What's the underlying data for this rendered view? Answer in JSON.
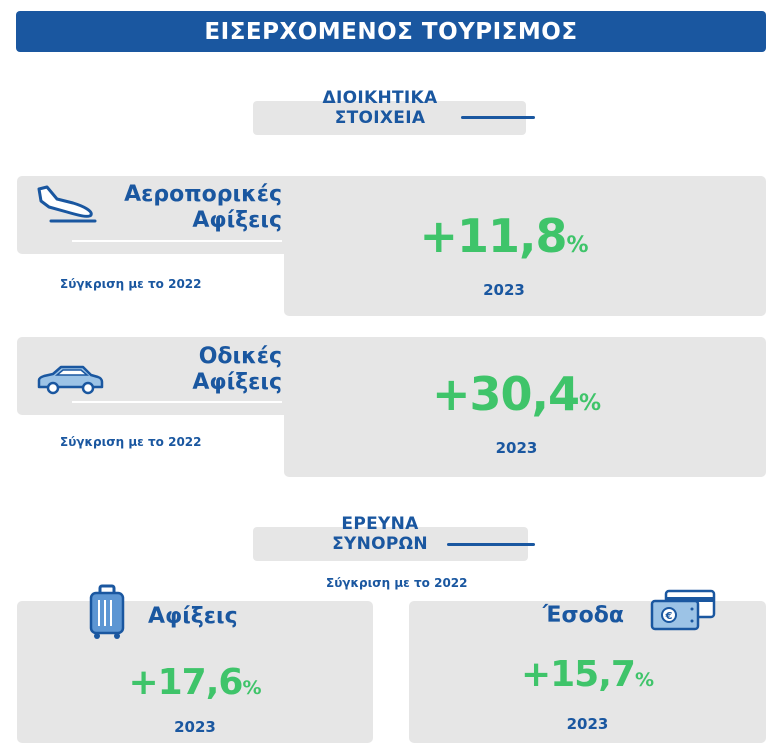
{
  "header": {
    "title": "ΕΙΣΕΡΧΟΜΕΝΟΣ ΤΟΥΡΙΣΜΟΣ"
  },
  "admin_section": {
    "title_line1": "ΔΙΟΙΚΗΤΙΚΑ",
    "title_line2": "ΣΤΟΙΧΕΙΑ"
  },
  "air_card": {
    "title_line1": "Αεροπορικές",
    "title_line2": "Αφίξεις",
    "compare": "Σύγκριση με το 2022",
    "value": "+11,8",
    "unit": "%",
    "year": "2023",
    "icon": "airplane-landing-icon"
  },
  "road_card": {
    "title_line1": "Οδικές",
    "title_line2": "Αφίξεις",
    "compare": "Σύγκριση με το 2022",
    "value": "+30,4",
    "unit": "%",
    "year": "2023",
    "icon": "car-icon"
  },
  "survey_section": {
    "title_line1": "ΕΡΕΥΝΑ",
    "title_line2": "ΣΥΝΟΡΩΝ",
    "compare": "Σύγκριση με το 2022"
  },
  "arrivals_card": {
    "title": "Αφίξεις",
    "value": "+17,6",
    "unit": "%",
    "year": "2023",
    "icon": "suitcase-icon"
  },
  "revenue_card": {
    "title": "Έσοδα",
    "value": "+15,7",
    "unit": "%",
    "year": "2023",
    "icon": "money-card-icon"
  },
  "colors": {
    "brand_blue": "#1a57a0",
    "accent_green": "#3fc46a",
    "panel_grey": "#e6e6e6"
  }
}
